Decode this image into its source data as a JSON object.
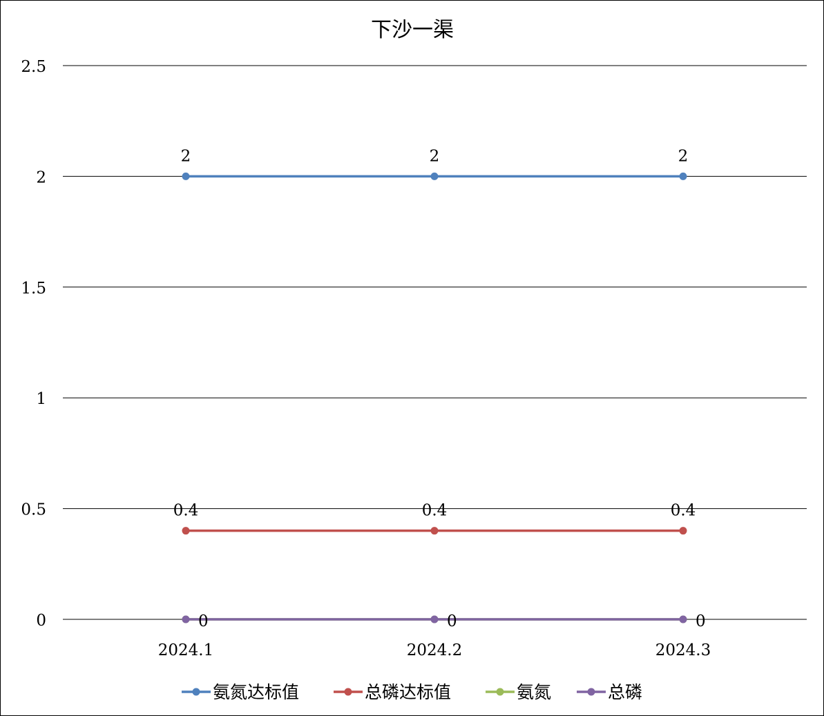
{
  "chart_data": {
    "type": "line",
    "title": "下沙一渠",
    "xlabel": "",
    "ylabel": "",
    "categories": [
      "2024.1",
      "2024.2",
      "2024.3"
    ],
    "ylim": [
      0,
      2.5
    ],
    "y_ticks": [
      "0",
      "0.5",
      "1",
      "1.5",
      "2",
      "2.5"
    ],
    "y_tick_values": [
      0,
      0.5,
      1,
      1.5,
      2,
      2.5
    ],
    "grid": true,
    "legend_position": "bottom",
    "series": [
      {
        "name": "氨氮达标值",
        "values": [
          2,
          2,
          2
        ],
        "labels": [
          "2",
          "2",
          "2"
        ],
        "color": "#4F81BD",
        "label_position": "above"
      },
      {
        "name": "总磷达标值",
        "values": [
          0.4,
          0.4,
          0.4
        ],
        "labels": [
          "0.4",
          "0.4",
          "0.4"
        ],
        "color": "#C0504D",
        "label_position": "above"
      },
      {
        "name": "氨氮",
        "values": [
          0,
          0,
          0
        ],
        "labels": [],
        "color": "#9BBB59",
        "label_position": "none"
      },
      {
        "name": "总磷",
        "values": [
          0,
          0,
          0
        ],
        "labels": [
          "0",
          "0",
          "0"
        ],
        "color": "#8064A2",
        "label_position": "right"
      }
    ]
  }
}
